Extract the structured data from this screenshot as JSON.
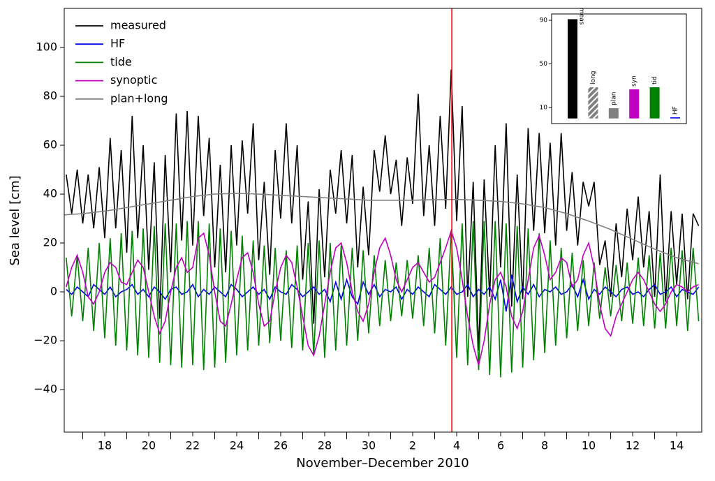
{
  "chart_data": [
    {
      "type": "line",
      "xlabel": "November–December 2010",
      "ylabel": "Sea level [cm]",
      "xlim": [
        16.16,
        45.14
      ],
      "ylim": [
        -57.4,
        116
      ],
      "xticks": [
        18,
        20,
        22,
        24,
        26,
        28,
        30,
        {
          "value": 32,
          "label": "2"
        },
        {
          "value": 34,
          "label": "4"
        },
        {
          "value": 36,
          "label": "6"
        },
        {
          "value": 38,
          "label": "8"
        },
        {
          "value": 40,
          "label": "10"
        },
        {
          "value": 42,
          "label": "12"
        },
        {
          "value": 44,
          "label": "14"
        }
      ],
      "xminorticks": [
        17,
        19,
        21,
        23,
        25,
        27,
        29,
        31,
        33,
        35,
        37,
        39,
        41,
        43
      ],
      "yticks": [
        {
          "value": -40,
          "label": "−40"
        },
        {
          "value": -20,
          "label": "−20"
        },
        0,
        20,
        40,
        60,
        80,
        100
      ],
      "legend": "upper left",
      "vline": {
        "x": 33.78,
        "color": "#ff0000"
      },
      "x": [
        16.25,
        16.5,
        16.75,
        17,
        17.25,
        17.5,
        17.75,
        18,
        18.25,
        18.5,
        18.75,
        19,
        19.25,
        19.5,
        19.75,
        20,
        20.25,
        20.5,
        20.75,
        21,
        21.25,
        21.5,
        21.75,
        22,
        22.25,
        22.5,
        22.75,
        23,
        23.25,
        23.5,
        23.75,
        24,
        24.25,
        24.5,
        24.75,
        25,
        25.25,
        25.5,
        25.75,
        26,
        26.25,
        26.5,
        26.75,
        27,
        27.25,
        27.5,
        27.75,
        28,
        28.25,
        28.5,
        28.75,
        29,
        29.25,
        29.5,
        29.75,
        30,
        30.25,
        30.5,
        30.75,
        31,
        31.25,
        31.5,
        31.75,
        32,
        32.25,
        32.5,
        32.75,
        33,
        33.25,
        33.5,
        33.75,
        34,
        34.25,
        34.5,
        34.75,
        35,
        35.25,
        35.5,
        35.75,
        36,
        36.25,
        36.5,
        36.75,
        37,
        37.25,
        37.5,
        37.75,
        38,
        38.25,
        38.5,
        38.75,
        39,
        39.25,
        39.5,
        39.75,
        40,
        40.25,
        40.5,
        40.75,
        41,
        41.25,
        41.5,
        41.75,
        42,
        42.25,
        42.5,
        42.75,
        43,
        43.25,
        43.5,
        43.75,
        44,
        44.25,
        44.5,
        44.75,
        45
      ],
      "series": [
        {
          "name": "measured",
          "color": "#000000",
          "values": [
            48,
            32,
            50,
            28,
            48,
            26,
            51,
            22,
            63,
            26,
            58,
            16,
            72,
            22,
            60,
            9,
            53,
            -11,
            56,
            8,
            73,
            21,
            74,
            19,
            72,
            31,
            63,
            10,
            52,
            8,
            60,
            19,
            62,
            32,
            69,
            13,
            45,
            7,
            58,
            30,
            69,
            28,
            60,
            5,
            37,
            -13,
            42,
            6,
            50,
            32,
            58,
            28,
            56,
            10,
            43,
            15,
            58,
            41,
            64,
            40,
            54,
            27,
            55,
            36,
            81,
            31,
            60,
            27,
            72,
            34,
            91,
            29,
            76,
            -2,
            45,
            -24,
            46,
            -2,
            60,
            10,
            69,
            -6,
            48,
            -3,
            67,
            25,
            65,
            24,
            61,
            19,
            65,
            25,
            49,
            19,
            45,
            35,
            45,
            11,
            21,
            -2,
            28,
            6,
            34,
            13,
            39,
            10,
            33,
            -2,
            48,
            -4,
            33,
            3,
            32,
            -3,
            32,
            27
          ]
        },
        {
          "name": "HF",
          "color": "#0000ee",
          "values": [
            1,
            -1,
            2,
            0,
            -2,
            3,
            1,
            -1,
            2,
            -2,
            0,
            1,
            3,
            -1,
            1,
            -2,
            2,
            0,
            -3,
            1,
            2,
            -1,
            0,
            3,
            -2,
            1,
            -1,
            2,
            0,
            -2,
            3,
            1,
            -2,
            0,
            2,
            -1,
            1,
            -3,
            2,
            0,
            -1,
            3,
            1,
            -2,
            0,
            2,
            -1,
            1,
            -4,
            4,
            -3,
            5,
            -2,
            -5,
            4,
            -1,
            3,
            -2,
            1,
            0,
            2,
            -3,
            1,
            -1,
            2,
            0,
            -2,
            3,
            1,
            -1,
            2,
            -1,
            0,
            3,
            -2,
            1,
            -1,
            2,
            -3,
            5,
            -8,
            7,
            -4,
            2,
            -1,
            3,
            -2,
            1,
            0,
            2,
            -1,
            0,
            3,
            -2,
            5,
            -3,
            1,
            -1,
            2,
            0,
            -2,
            1,
            2,
            -1,
            0,
            -2,
            1,
            3,
            -1,
            0,
            2,
            -2,
            1,
            0,
            -1,
            2
          ]
        },
        {
          "name": "tide",
          "color": "#008000",
          "values": [
            14,
            -10,
            15,
            -12,
            18,
            -16,
            20,
            -19,
            22,
            -22,
            24,
            -24,
            25,
            -26,
            26,
            -27,
            27,
            -29,
            28,
            -30,
            28,
            -31,
            29,
            -30,
            29,
            -32,
            28,
            -31,
            26,
            -29,
            25,
            -26,
            23,
            -24,
            21,
            -22,
            19,
            -21,
            18,
            -20,
            17,
            -23,
            19,
            -24,
            20,
            -26,
            21,
            -27,
            20,
            -24,
            19,
            -22,
            18,
            -20,
            17,
            -17,
            15,
            -14,
            13,
            -12,
            12,
            -10,
            13,
            -11,
            15,
            -14,
            18,
            -17,
            22,
            -22,
            25,
            -27,
            28,
            -30,
            29,
            -32,
            29,
            -34,
            29,
            -35,
            28,
            -33,
            27,
            -31,
            26,
            -28,
            24,
            -25,
            21,
            -22,
            18,
            -19,
            16,
            -16,
            13,
            -14,
            12,
            -11,
            10,
            -10,
            11,
            -12,
            12,
            -13,
            14,
            -14,
            15,
            -15,
            16,
            -15,
            18,
            -14,
            17,
            -16,
            18,
            -12
          ]
        },
        {
          "name": "synoptic",
          "color": "#c000c0",
          "values": [
            2,
            10,
            15,
            8,
            -2,
            -5,
            0,
            8,
            12,
            10,
            4,
            3,
            8,
            13,
            10,
            0,
            -10,
            -17,
            -12,
            0,
            10,
            14,
            8,
            10,
            22,
            24,
            15,
            0,
            -12,
            -14,
            -5,
            5,
            14,
            16,
            8,
            -5,
            -14,
            -12,
            0,
            10,
            15,
            12,
            2,
            -10,
            -22,
            -26,
            -18,
            -5,
            8,
            18,
            20,
            12,
            0,
            -8,
            -12,
            -5,
            8,
            18,
            22,
            15,
            5,
            0,
            5,
            10,
            12,
            8,
            4,
            6,
            12,
            18,
            25,
            18,
            5,
            -10,
            -22,
            -30,
            -20,
            -5,
            5,
            8,
            2,
            -10,
            -15,
            -8,
            5,
            18,
            23,
            15,
            5,
            8,
            14,
            12,
            2,
            5,
            15,
            20,
            10,
            -5,
            -15,
            -18,
            -10,
            -5,
            0,
            5,
            8,
            5,
            0,
            -5,
            -8,
            -5,
            0,
            3,
            2,
            0,
            2,
            3
          ]
        },
        {
          "name": "plan+long",
          "color": "#808080",
          "x": [
            16.16,
            17,
            18,
            19,
            20,
            21,
            22,
            23,
            24,
            25,
            26,
            27,
            28,
            29,
            30,
            31,
            32,
            33,
            34,
            35,
            36,
            37,
            38,
            39,
            40,
            41,
            42,
            43,
            44,
            45
          ],
          "values": [
            31.5,
            32,
            33,
            34.5,
            36,
            37.5,
            39,
            40,
            40.3,
            40,
            39.5,
            39,
            38.5,
            38,
            37.5,
            37.5,
            37.5,
            37.7,
            37.8,
            37.5,
            37,
            36,
            34.5,
            32,
            29,
            25.5,
            21.5,
            17.5,
            14,
            11.5
          ]
        }
      ]
    },
    {
      "type": "bar",
      "categories": [
        "meas",
        "long",
        "plan",
        "syn",
        "tid",
        "HF"
      ],
      "values": [
        91,
        28.6,
        9.4,
        26.7,
        28.6,
        1
      ],
      "colors": [
        "#000000",
        "#808080",
        "#808080",
        "#c000c0",
        "#008000",
        "#0000ee"
      ],
      "hatch": [
        false,
        true,
        false,
        false,
        false,
        false
      ],
      "ylim": [
        -4.7,
        95.8
      ],
      "yticks": [
        10,
        50,
        90
      ]
    }
  ]
}
